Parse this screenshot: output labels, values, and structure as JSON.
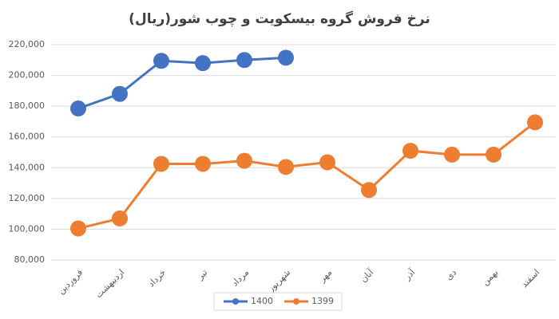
{
  "chart_data": {
    "type": "line",
    "title": "نرخ فروش گروه بیسکویت و چوب شور(ریال)",
    "categories": [
      "فروردین",
      "اردیبهشت",
      "خرداد",
      "تیر",
      "مرداد",
      "شهریور",
      "مهر",
      "آبان",
      "آذر",
      "دی",
      "بهمن",
      "اسفند"
    ],
    "series": [
      {
        "name": "1400",
        "color": "#4472c4",
        "values": [
          178500,
          188000,
          209500,
          208000,
          210000,
          211500,
          null,
          null,
          null,
          null,
          null,
          null
        ]
      },
      {
        "name": "1399",
        "color": "#ed7d31",
        "values": [
          100500,
          107000,
          142500,
          142500,
          144500,
          140500,
          143500,
          125500,
          151000,
          148500,
          148500,
          169500
        ]
      }
    ],
    "ylim": [
      80000,
      220000
    ],
    "yticks": [
      {
        "value": 80000,
        "label": "80,000"
      },
      {
        "value": 100000,
        "label": "100,000"
      },
      {
        "value": 120000,
        "label": "120,000"
      },
      {
        "value": 140000,
        "label": "140,000"
      },
      {
        "value": 160000,
        "label": "160,000"
      },
      {
        "value": 180000,
        "label": "180,000"
      },
      {
        "value": 200000,
        "label": "200,000"
      },
      {
        "value": 220000,
        "label": "220,000"
      }
    ],
    "grid": true,
    "legend": "bottom"
  }
}
